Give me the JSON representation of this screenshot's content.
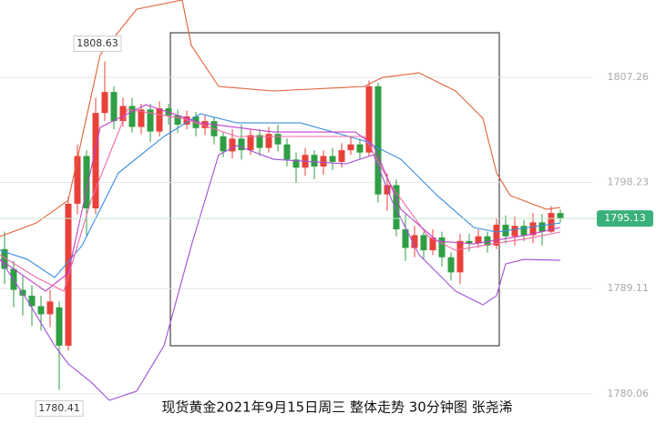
{
  "chart_data": {
    "type": "candlestick",
    "title": "现货黄金2021年9月15日周三 整体走势 30分钟图  张尧浠",
    "ylim": [
      1776.61,
      1813.91
    ],
    "yticks": [
      1807.26,
      1798.23,
      1789.11,
      1780.06
    ],
    "grid": true,
    "up_color": "#e8413a",
    "down_color": "#2f9e44",
    "open": [
      1792.5,
      1790.8,
      1789.0,
      1788.5,
      1787.6,
      1786.9,
      1787.5,
      1784.2,
      1796.4,
      1800.5,
      1796.0,
      1804.2,
      1806.0,
      1803.5,
      1804.8,
      1803.0,
      1804.5,
      1802.6,
      1804.6,
      1804.0,
      1803.2,
      1803.9,
      1802.9,
      1803.5,
      1802.2,
      1800.9,
      1802.0,
      1801.0,
      1802.3,
      1801.2,
      1802.4,
      1801.5,
      1800.2,
      1799.5,
      1800.6,
      1799.6,
      1800.5,
      1800.0,
      1801.0,
      1801.5,
      1800.8,
      1806.5,
      1797.2,
      1798.0,
      1794.2,
      1792.6,
      1793.7,
      1792.4,
      1793.5,
      1791.8,
      1790.5,
      1793.2,
      1793.0,
      1793.6,
      1792.8,
      1794.6,
      1793.6,
      1794.5,
      1793.7,
      1794.8,
      1794.0,
      1795.6
    ],
    "high": [
      1794.0,
      1791.5,
      1790.2,
      1789.4,
      1788.5,
      1789.0,
      1788.0,
      1797.0,
      1801.5,
      1801.0,
      1805.5,
      1808.63,
      1806.5,
      1805.5,
      1805.5,
      1805.0,
      1805.0,
      1805.2,
      1805.0,
      1804.5,
      1804.4,
      1804.3,
      1804.0,
      1803.8,
      1802.6,
      1802.8,
      1803.2,
      1802.8,
      1802.8,
      1803.0,
      1803.2,
      1802.0,
      1800.8,
      1801.2,
      1801.0,
      1801.0,
      1801.2,
      1801.6,
      1802.2,
      1802.0,
      1807.0,
      1806.8,
      1799.0,
      1798.5,
      1795.5,
      1794.5,
      1794.0,
      1794.2,
      1794.0,
      1792.2,
      1793.8,
      1793.8,
      1794.2,
      1794.0,
      1795.2,
      1795.4,
      1795.3,
      1795.0,
      1795.6,
      1795.5,
      1796.2,
      1795.9
    ],
    "low": [
      1789.5,
      1787.5,
      1786.8,
      1785.9,
      1785.5,
      1785.8,
      1780.41,
      1783.8,
      1795.5,
      1793.5,
      1795.5,
      1803.5,
      1802.8,
      1803.0,
      1802.5,
      1802.4,
      1801.7,
      1802.2,
      1803.2,
      1802.5,
      1802.8,
      1802.2,
      1802.3,
      1801.5,
      1800.4,
      1800.3,
      1800.2,
      1800.6,
      1800.5,
      1800.8,
      1800.9,
      1799.6,
      1798.2,
      1798.8,
      1798.5,
      1798.9,
      1799.3,
      1799.5,
      1800.6,
      1800.2,
      1800.5,
      1796.5,
      1795.8,
      1793.6,
      1791.5,
      1791.8,
      1791.6,
      1792.0,
      1791.0,
      1789.8,
      1789.5,
      1792.3,
      1792.6,
      1792.2,
      1792.5,
      1793.0,
      1792.8,
      1793.2,
      1793.0,
      1792.8,
      1793.9,
      1794.8
    ],
    "close": [
      1790.8,
      1789.0,
      1788.5,
      1787.6,
      1786.9,
      1788.0,
      1784.2,
      1796.4,
      1800.5,
      1796.0,
      1804.2,
      1806.0,
      1803.5,
      1804.8,
      1803.0,
      1804.5,
      1802.6,
      1804.6,
      1804.0,
      1803.2,
      1803.9,
      1802.9,
      1803.5,
      1802.2,
      1800.9,
      1802.0,
      1801.0,
      1802.3,
      1801.2,
      1802.4,
      1801.5,
      1800.2,
      1799.5,
      1800.6,
      1799.6,
      1800.5,
      1800.0,
      1801.0,
      1801.5,
      1800.8,
      1806.5,
      1797.2,
      1798.0,
      1794.2,
      1792.6,
      1793.7,
      1792.4,
      1793.5,
      1791.8,
      1790.5,
      1793.2,
      1793.0,
      1793.6,
      1792.8,
      1794.6,
      1793.6,
      1794.5,
      1793.7,
      1794.8,
      1794.0,
      1795.6,
      1795.13
    ],
    "lines": [
      {
        "color": "#e0623a",
        "x": [
          -0.5,
          3.5,
          7,
          10.5,
          14.5,
          19.5,
          20.5,
          23.5,
          29.5,
          39.5,
          41.5,
          45.5,
          49.5,
          52.5,
          54,
          55.5,
          59.5,
          61
        ],
        "values": [
          1793.58,
          1794.75,
          1796.7,
          1809.21,
          1813.12,
          1813.91,
          1810.0,
          1806.48,
          1806.09,
          1806.48,
          1807.26,
          1807.65,
          1806.09,
          1803.74,
          1799.05,
          1797.1,
          1795.92,
          1796.08
        ]
      },
      {
        "color": "#a050d8",
        "x": [
          -0.5,
          2.5,
          5.5,
          7,
          9.5,
          11.5,
          14.5,
          17.5,
          20.5,
          23.5,
          25.5,
          29.5,
          37.5,
          40.5,
          42.5,
          45.5,
          49.5,
          52.5,
          54,
          55,
          57,
          61
        ],
        "values": [
          1791.62,
          1788.1,
          1784.2,
          1782.63,
          1781.07,
          1779.5,
          1780.29,
          1784.2,
          1792.8,
          1800.61,
          1801.4,
          1800.22,
          1799.83,
          1800.61,
          1796.7,
          1792.01,
          1788.89,
          1787.71,
          1788.5,
          1791.23,
          1791.62,
          1791.54
        ]
      },
      {
        "color": "#3a8ee0",
        "x": [
          -0.5,
          2.5,
          5.5,
          8.5,
          12.5,
          17.5,
          21.5,
          25.5,
          32.5,
          39.5,
          43.5,
          47.5,
          51.5,
          54,
          57.5,
          61
        ],
        "values": [
          1792.4,
          1791.62,
          1790.06,
          1792.8,
          1799.05,
          1802.18,
          1804.13,
          1803.35,
          1803.35,
          1801.79,
          1800.22,
          1797.1,
          1794.36,
          1793.97,
          1794.36,
          1794.75
        ]
      },
      {
        "color": "#f06aa8",
        "x": [
          -0.5,
          3.5,
          6.5,
          9.5,
          13.5,
          19.5,
          25.5,
          32.5,
          39.5,
          42.5,
          46.5,
          49.5,
          53.5,
          57.5,
          61
        ],
        "values": [
          1792.01,
          1790.06,
          1788.89,
          1796.7,
          1804.52,
          1803.74,
          1802.18,
          1802.18,
          1802.18,
          1797.88,
          1793.58,
          1792.4,
          1792.95,
          1793.42,
          1793.97
        ]
      },
      {
        "color": "#c040c8",
        "x": [
          -0.5,
          4.5,
          7,
          10.5,
          15.5,
          21.5,
          29.5,
          38.5,
          40.5,
          43.5,
          47.5,
          51.5,
          57.5,
          61
        ],
        "values": [
          1791.62,
          1788.89,
          1790.45,
          1802.96,
          1804.91,
          1803.35,
          1802.57,
          1802.57,
          1801.4,
          1795.92,
          1793.19,
          1792.95,
          1793.73,
          1794.36
        ]
      }
    ],
    "high_label": 1808.63,
    "high_index": 11,
    "low_label": 1780.41,
    "low_index": 6,
    "last_price": 1795.13,
    "last_color": "#3ab07a"
  }
}
